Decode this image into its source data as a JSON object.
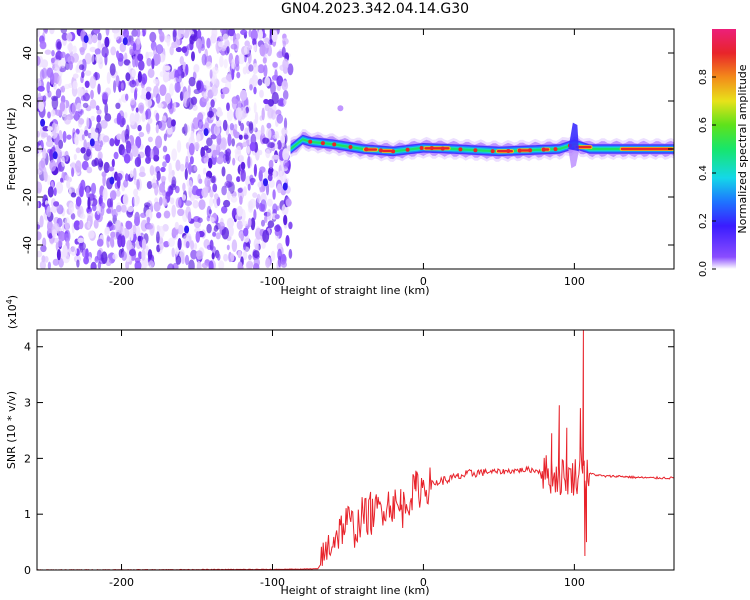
{
  "title": "GN04.2023.342.04.14.G30",
  "chart_data": [
    {
      "type": "heatmap",
      "xlabel": "Height of straight line (km)",
      "ylabel": "Frequency (Hz)",
      "xlim": [
        -256,
        166
      ],
      "ylim": [
        -50,
        50
      ],
      "xticks": [
        -200,
        -100,
        0,
        100
      ],
      "yticks": [
        -40,
        -20,
        0,
        20,
        40
      ],
      "noise_region_x": [
        -256,
        -88
      ],
      "signal_band": {
        "x_start": -88,
        "x_end": 166,
        "center_hz": [
          [
            -88,
            0
          ],
          [
            -80,
            4
          ],
          [
            -75,
            3
          ],
          [
            -60,
            2
          ],
          [
            -50,
            1
          ],
          [
            -40,
            0
          ],
          [
            -20,
            -1
          ],
          [
            0,
            0.5
          ],
          [
            20,
            0
          ],
          [
            50,
            -1
          ],
          [
            70,
            -0.5
          ],
          [
            90,
            0
          ],
          [
            100,
            2
          ],
          [
            110,
            0
          ],
          [
            166,
            0
          ]
        ]
      },
      "colorbar": {
        "label": "Normalized spectral amplitude",
        "min": 0.0,
        "max": 1.0,
        "ticks": [
          "0.0",
          "0.2",
          "0.4",
          "0.6",
          "0.8"
        ]
      }
    },
    {
      "type": "line",
      "xlabel": "Height of straight line (km)",
      "ylabel": "SNR (10 * v/v)",
      "y_exponent": "(x10",
      "y_exponent_power": "4",
      "y_exponent_close": ")",
      "xlim": [
        -256,
        166
      ],
      "ylim": [
        0,
        4.3
      ],
      "xticks": [
        -200,
        -100,
        0,
        100
      ],
      "yticks": [
        0,
        1,
        2,
        3,
        4
      ],
      "color": "#e8232b",
      "series": [
        {
          "x": [
            -256,
            -100,
            -70,
            -67,
            -64,
            -60,
            -55,
            -50,
            -45,
            -40,
            -35,
            -30,
            -25,
            -20,
            -15,
            -10,
            -5,
            0,
            5,
            10,
            20,
            30,
            40,
            50,
            60,
            70,
            75,
            80,
            82,
            85,
            88,
            90,
            92,
            95,
            97,
            100,
            103,
            105,
            106,
            107,
            108,
            109,
            110,
            112,
            115,
            120,
            130,
            140,
            150,
            166
          ],
          "y": [
            0,
            0.01,
            0.02,
            0.15,
            0.38,
            0.55,
            0.72,
            0.88,
            0.72,
            1.0,
            0.95,
            1.08,
            1.18,
            1.2,
            1.02,
            1.3,
            1.42,
            1.5,
            1.52,
            1.58,
            1.65,
            1.72,
            1.76,
            1.76,
            1.78,
            1.8,
            1.78,
            1.76,
            1.72,
            1.7,
            1.68,
            1.66,
            1.68,
            1.7,
            1.64,
            1.68,
            1.72,
            2.1,
            1.95,
            1.62,
            1.7,
            1.64,
            1.72,
            1.72,
            1.7,
            1.68,
            1.68,
            1.66,
            1.65,
            1.65
          ]
        }
      ],
      "spikes": [
        {
          "x": -35,
          "y": 1.4
        },
        {
          "x": -15,
          "y": 1.45
        },
        {
          "x": -5,
          "y": 1.78
        },
        {
          "x": 85,
          "y": 2.45
        },
        {
          "x": 90,
          "y": 2.95
        },
        {
          "x": 95,
          "y": 2.55
        },
        {
          "x": 104,
          "y": 2.9
        },
        {
          "x": 106,
          "y": 4.3
        },
        {
          "x": 107,
          "y": 0.25
        },
        {
          "x": 108,
          "y": 0.5
        }
      ]
    }
  ]
}
